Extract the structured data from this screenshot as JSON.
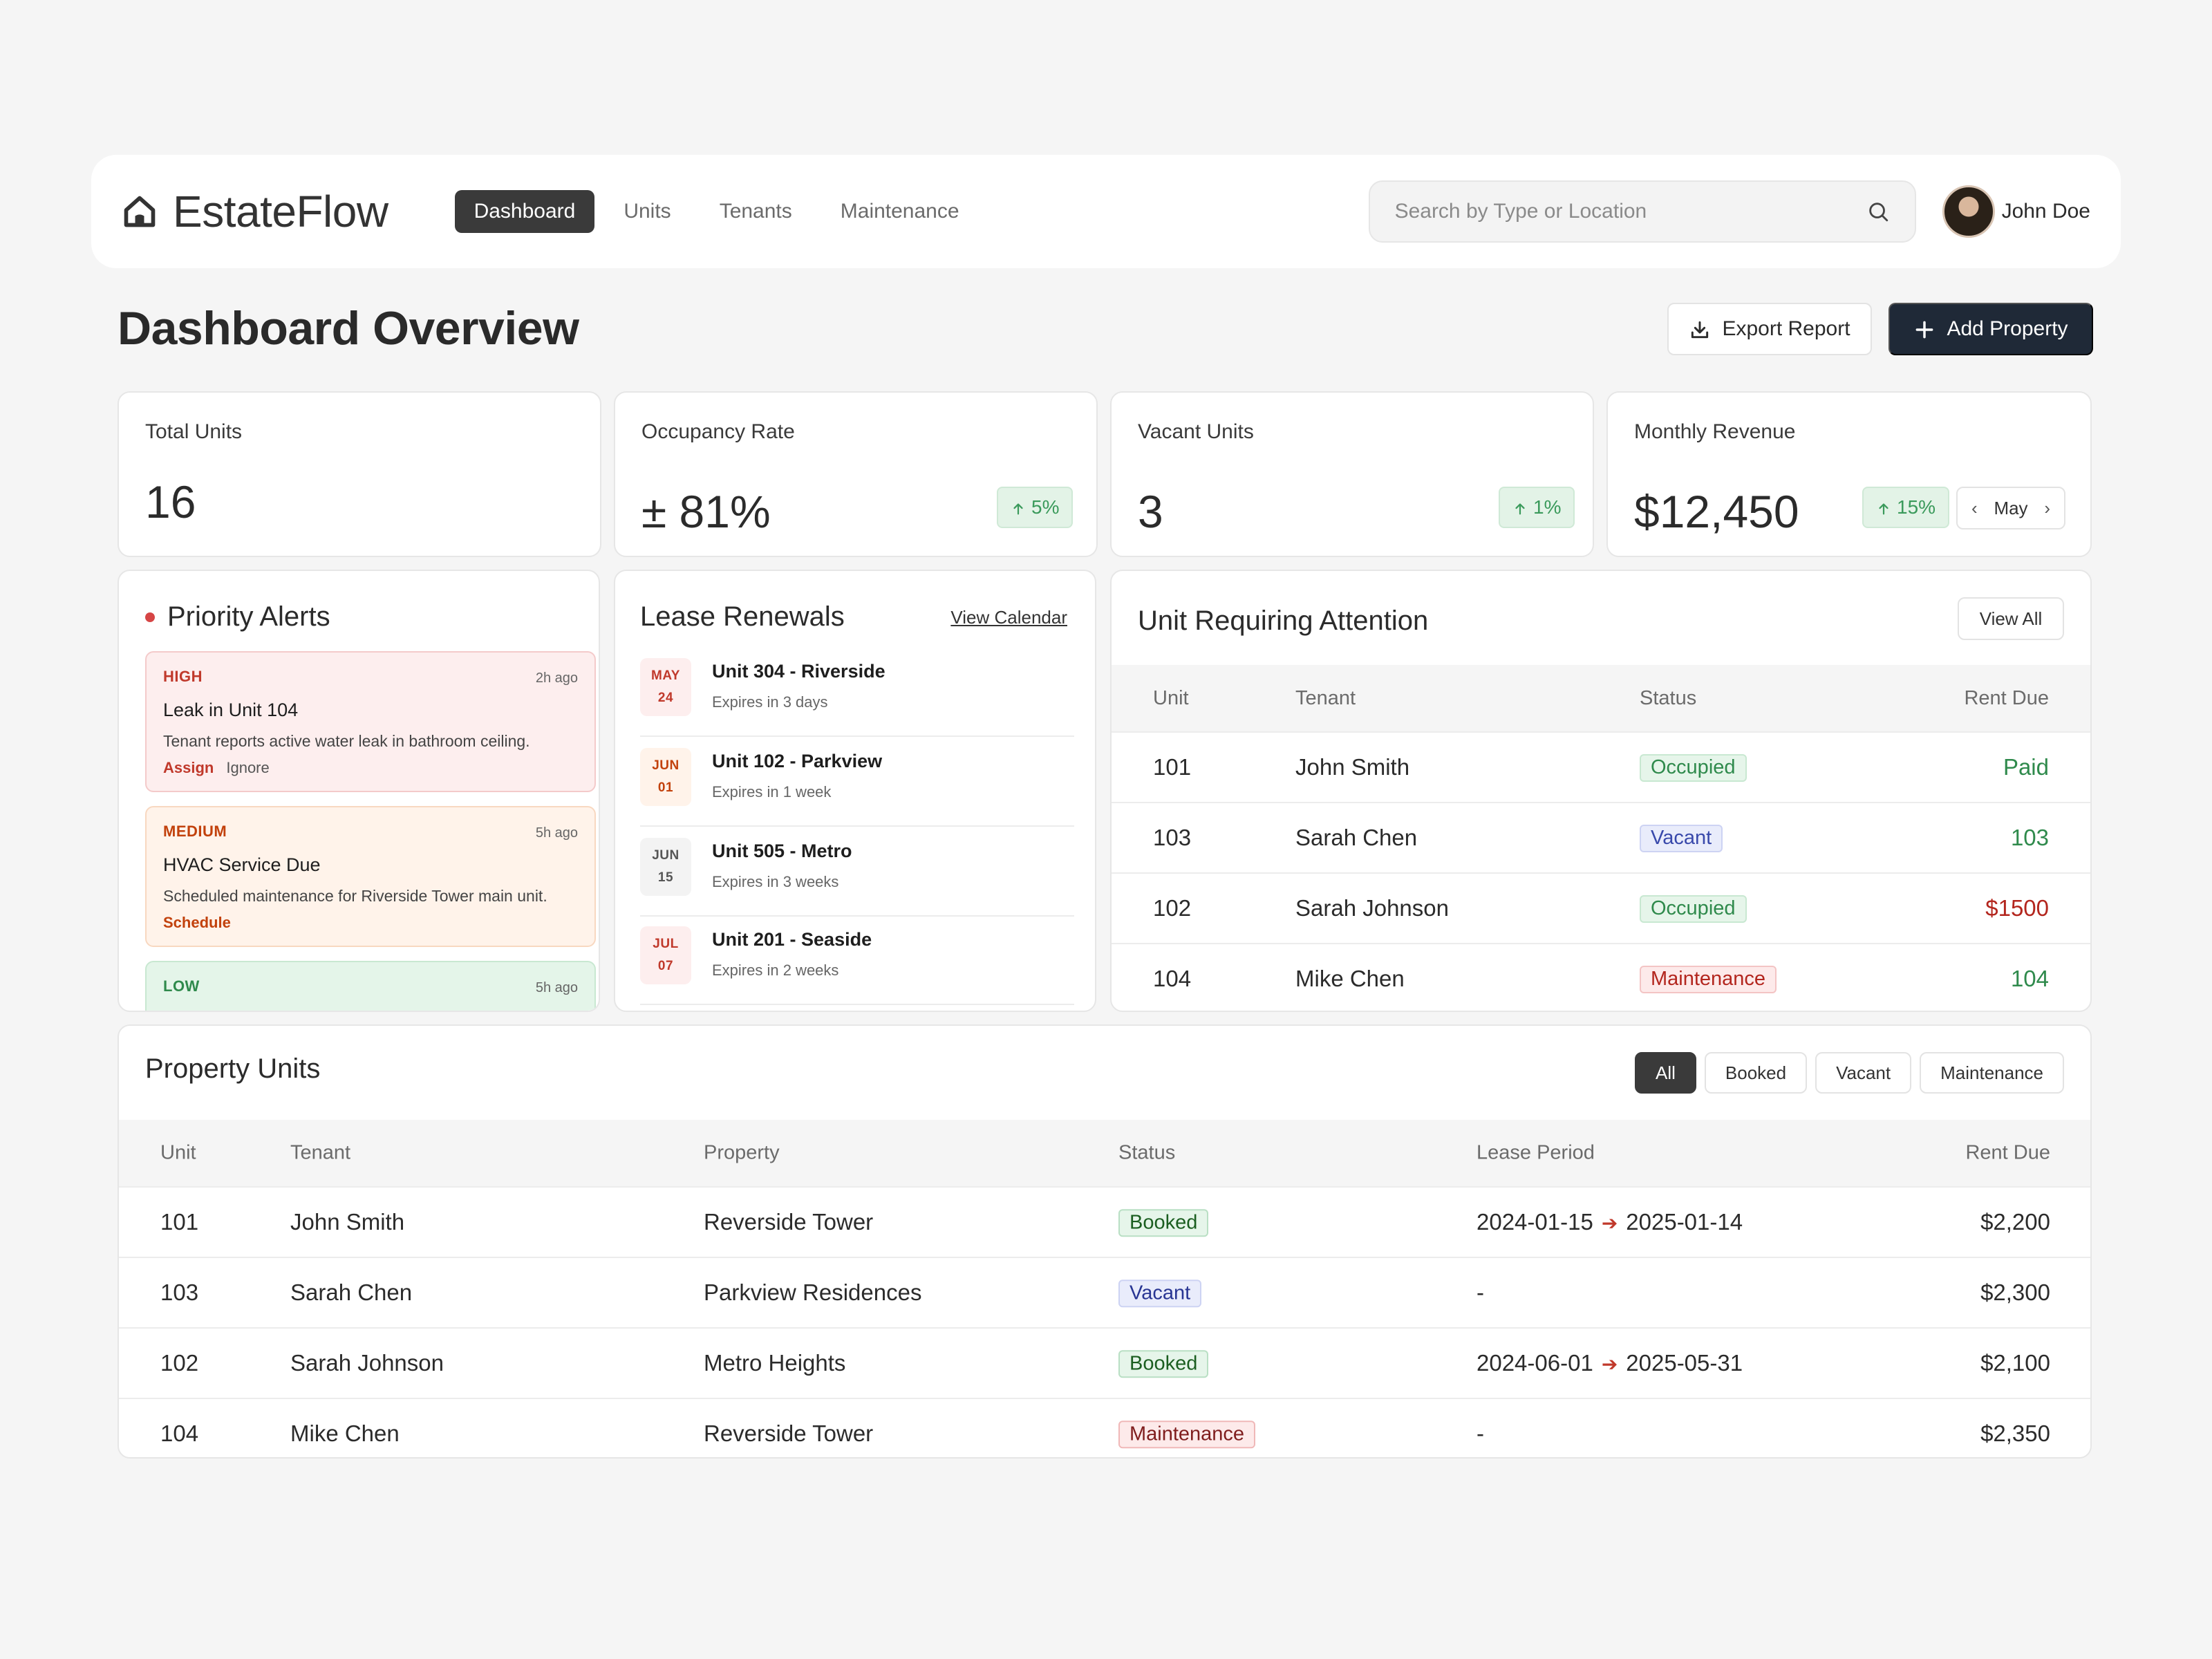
{
  "app": {
    "name": "EstateFlow",
    "nav": [
      "Dashboard",
      "Units",
      "Tenants",
      "Maintenance"
    ],
    "active_nav": "Dashboard",
    "search_placeholder": "Search by Type or Location",
    "user_name": "John Doe"
  },
  "page": {
    "title": "Dashboard Overview",
    "export_label": "Export Report",
    "add_label": "Add Property"
  },
  "stats": {
    "total_units": {
      "label": "Total Units",
      "value": "16"
    },
    "occupancy": {
      "label": "Occupancy Rate",
      "value": "± 81%",
      "change": "5%"
    },
    "vacant": {
      "label": "Vacant Units",
      "value": "3",
      "change": "1%"
    },
    "revenue": {
      "label": "Monthly Revenue",
      "value": "$12,450",
      "change": "15%",
      "month": "May"
    }
  },
  "alerts": {
    "title": "Priority Alerts",
    "items": [
      {
        "level": "HIGH",
        "time": "2h ago",
        "title": "Leak in Unit 104",
        "desc": "Tenant reports active water leak in bathroom ceiling.",
        "primary": "Assign",
        "secondary": "Ignore"
      },
      {
        "level": "MEDIUM",
        "time": "5h ago",
        "title": "HVAC Service Due",
        "desc": "Scheduled maintenance for Riverside Tower main unit.",
        "primary": "Schedule"
      },
      {
        "level": "LOW",
        "time": "5h ago"
      }
    ]
  },
  "leases": {
    "title": "Lease Renewals",
    "link": "View Calendar",
    "items": [
      {
        "month": "MAY",
        "day": "24",
        "unit": "Unit 304 - Riverside",
        "expires": "Expires in 3 days"
      },
      {
        "month": "JUN",
        "day": "01",
        "unit": "Unit 102 - Parkview",
        "expires": "Expires in 1 week"
      },
      {
        "month": "JUN",
        "day": "15",
        "unit": "Unit 505 - Metro",
        "expires": "Expires in 3 weeks"
      },
      {
        "month": "JUL",
        "day": "07",
        "unit": "Unit 201 - Seaside",
        "expires": "Expires in 2 weeks"
      }
    ]
  },
  "attention": {
    "title": "Unit Requiring Attention",
    "view_all": "View All",
    "columns": [
      "Unit",
      "Tenant",
      "Status",
      "Rent Due"
    ],
    "rows": [
      {
        "unit": "101",
        "tenant": "John Smith",
        "status": "Occupied",
        "rent": "Paid"
      },
      {
        "unit": "103",
        "tenant": "Sarah Chen",
        "status": "Vacant",
        "rent": "103"
      },
      {
        "unit": "102",
        "tenant": "Sarah Johnson",
        "status": "Occupied",
        "rent": "$1500"
      },
      {
        "unit": "104",
        "tenant": "Mike Chen",
        "status": "Maintenance",
        "rent": "104"
      }
    ]
  },
  "units": {
    "title": "Property Units",
    "filters": [
      "All",
      "Booked",
      "Vacant",
      "Maintenance"
    ],
    "active_filter": "All",
    "columns": [
      "Unit",
      "Tenant",
      "Property",
      "Status",
      "Lease Period",
      "Rent Due"
    ],
    "rows": [
      {
        "unit": "101",
        "tenant": "John Smith",
        "property": "Reverside Tower",
        "status": "Booked",
        "lease_start": "2024-01-15",
        "lease_end": "2025-01-14",
        "rent": "$2,200"
      },
      {
        "unit": "103",
        "tenant": "Sarah Chen",
        "property": "Parkview Residences",
        "status": "Vacant",
        "lease_none": "-",
        "rent": "$2,300"
      },
      {
        "unit": "102",
        "tenant": "Sarah Johnson",
        "property": "Metro Heights",
        "status": "Booked",
        "lease_start": "2024-06-01",
        "lease_end": "2025-05-31",
        "rent": "$2,100"
      },
      {
        "unit": "104",
        "tenant": "Mike Chen",
        "property": "Reverside Tower",
        "status": "Maintenance",
        "lease_none": "-",
        "rent": "$2,350"
      }
    ]
  },
  "colors": {
    "primary_dark": "#1f2937",
    "nav_active": "#3a3a3a",
    "success": "#2f8a4c",
    "danger": "#b3261e",
    "info": "#3949ab",
    "warning": "#c2410c"
  },
  "icons": [
    "home-logo-icon",
    "search-icon",
    "download-icon",
    "plus-icon",
    "arrow-up-icon",
    "chevron-left-icon",
    "chevron-right-icon",
    "arrow-right-icon"
  ]
}
